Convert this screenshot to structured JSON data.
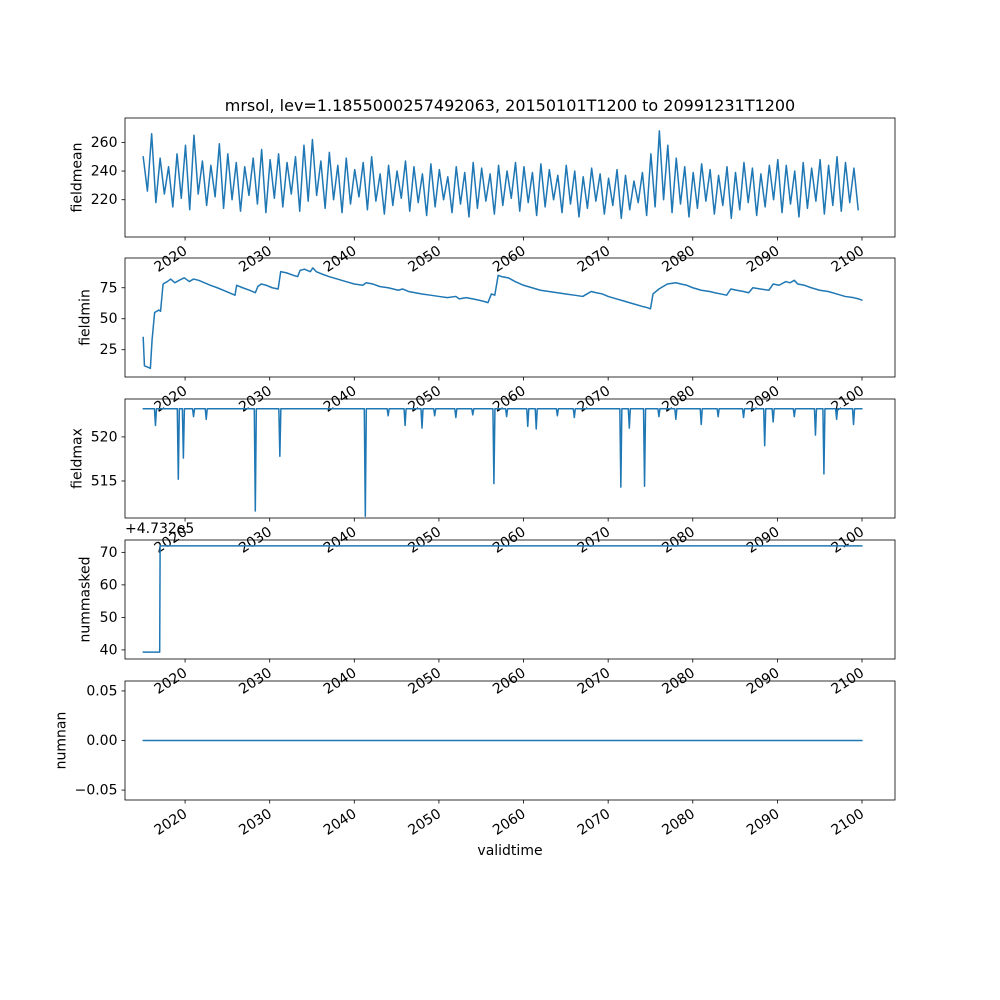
{
  "title": "mrsol, lev=1.1855000257492063, 20150101T1200 to 20991231T1200",
  "line_color": "#1f77b4",
  "x_axis": {
    "label": "validtime",
    "lim": [
      2012.9,
      2103.9
    ],
    "ticks": [
      2020,
      2030,
      2040,
      2050,
      2060,
      2070,
      2080,
      2090,
      2100
    ]
  },
  "chart_data": [
    {
      "type": "line",
      "ylabel": "fieldmean",
      "ylim": [
        194,
        277
      ],
      "yticks": [
        220,
        240,
        260
      ],
      "ytick_labels": [
        "220",
        "240",
        "260"
      ],
      "series": {
        "x0": 2015.05,
        "dx": 0.5,
        "values": [
          250,
          226,
          266,
          218,
          249,
          224,
          243,
          215,
          252,
          221,
          258,
          213,
          265,
          224,
          247,
          216,
          244,
          222,
          259,
          214,
          252,
          220,
          246,
          212,
          243,
          223,
          249,
          217,
          255,
          211,
          248,
          221,
          252,
          215,
          246,
          224,
          250,
          212,
          258,
          219,
          262,
          223,
          247,
          214,
          253,
          220,
          244,
          211,
          249,
          217,
          241,
          222,
          246,
          213,
          250,
          219,
          238,
          210,
          244,
          216,
          240,
          221,
          247,
          212,
          243,
          218,
          238,
          209,
          245,
          215,
          241,
          220,
          236,
          211,
          243,
          217,
          239,
          208,
          246,
          214,
          242,
          219,
          238,
          210,
          244,
          216,
          240,
          221,
          246,
          212,
          243,
          218,
          239,
          209,
          245,
          215,
          241,
          220,
          237,
          211,
          244,
          217,
          240,
          208,
          236,
          214,
          242,
          219,
          238,
          210,
          235,
          216,
          241,
          207,
          237,
          213,
          233,
          218,
          239,
          209,
          252,
          215,
          268,
          220,
          258,
          211,
          249,
          217,
          243,
          208,
          239,
          214,
          245,
          219,
          241,
          210,
          237,
          216,
          243,
          207,
          239,
          213,
          246,
          218,
          242,
          209,
          238,
          215,
          244,
          220,
          248,
          211,
          244,
          217,
          240,
          208,
          246,
          214,
          242,
          219,
          248,
          210,
          244,
          216,
          250,
          212,
          246,
          218,
          242,
          213
        ]
      }
    },
    {
      "type": "line",
      "ylabel": "fieldmin",
      "ylim": [
        3,
        99
      ],
      "yticks": [
        25,
        50,
        75
      ],
      "ytick_labels": [
        "25",
        "50",
        "75"
      ],
      "series": {
        "x": [
          2015.05,
          2015.2,
          2015.9,
          2016.1,
          2016.4,
          2016.9,
          2017.1,
          2017.4,
          2017.9,
          2018.3,
          2018.8,
          2019.3,
          2019.9,
          2020.5,
          2021.0,
          2021.6,
          2022.3,
          2023.0,
          2023.8,
          2024.5,
          2025.2,
          2025.9,
          2026.1,
          2026.8,
          2027.6,
          2028.3,
          2028.6,
          2029.0,
          2029.6,
          2030.3,
          2031.0,
          2031.3,
          2032.0,
          2032.8,
          2033.3,
          2033.6,
          2034.1,
          2034.8,
          2035.1,
          2035.5,
          2036.2,
          2037.0,
          2038.0,
          2039.0,
          2040.0,
          2041.0,
          2041.4,
          2042.2,
          2043.0,
          2044.0,
          2044.6,
          2045.2,
          2045.7,
          2046.4,
          2047.2,
          2048.0,
          2049.0,
          2050.0,
          2051.0,
          2052.0,
          2052.4,
          2053.2,
          2054.0,
          2054.7,
          2055.3,
          2055.8,
          2056.2,
          2056.6,
          2057.0,
          2057.4,
          2058.2,
          2059.0,
          2060.0,
          2061.0,
          2062.0,
          2063.0,
          2064.0,
          2065.0,
          2066.0,
          2067.0,
          2067.5,
          2068.0,
          2068.6,
          2069.3,
          2070.0,
          2071.0,
          2072.0,
          2073.0,
          2074.0,
          2074.6,
          2075.0,
          2075.3,
          2076.0,
          2077.0,
          2078.0,
          2078.6,
          2079.3,
          2080.0,
          2081.0,
          2082.0,
          2082.6,
          2083.3,
          2084.0,
          2084.5,
          2085.2,
          2086.0,
          2086.6,
          2087.1,
          2088.0,
          2089.0,
          2089.5,
          2090.2,
          2091.0,
          2091.5,
          2092.0,
          2092.4,
          2093.2,
          2094.0,
          2095.0,
          2096.0,
          2097.0,
          2098.0,
          2099.0,
          2099.6,
          2100.0
        ],
        "y": [
          35,
          12,
          10,
          33,
          55,
          57,
          56,
          78,
          80,
          82,
          79,
          81,
          83,
          80,
          82,
          81,
          79,
          77,
          75,
          73,
          71,
          69,
          77,
          75,
          73,
          71,
          76,
          78,
          77,
          75,
          74,
          88,
          87,
          85,
          84,
          89,
          90,
          88,
          91,
          88,
          86,
          84,
          82,
          80,
          78,
          77,
          79,
          78,
          76,
          75,
          74,
          73,
          74,
          72,
          71,
          70,
          69,
          68,
          67,
          68,
          66,
          67,
          66,
          65,
          64,
          63,
          70,
          69,
          85,
          84,
          83,
          80,
          77,
          75,
          73,
          72,
          71,
          70,
          69,
          68,
          70,
          72,
          71,
          70,
          68,
          66,
          64,
          62,
          60,
          59,
          58,
          70,
          74,
          78,
          79,
          78,
          77,
          75,
          73,
          72,
          71,
          70,
          69,
          74,
          73,
          72,
          71,
          75,
          74,
          73,
          78,
          77,
          80,
          79,
          81,
          78,
          77,
          75,
          73,
          72,
          70,
          68,
          67,
          66,
          65
        ]
      }
    },
    {
      "type": "spike-line",
      "ylabel": "fieldmax",
      "ylim": [
        510.8,
        524.3
      ],
      "yticks": [
        515,
        520
      ],
      "ytick_labels": [
        "515",
        "520"
      ],
      "series": {
        "baseline": 523.2,
        "x_range": [
          2015.05,
          2100.0
        ],
        "spike_halfwidth": 0.12,
        "spikes": [
          [
            2016.5,
            521.3
          ],
          [
            2019.2,
            515.2
          ],
          [
            2019.8,
            517.6
          ],
          [
            2021.0,
            522.3
          ],
          [
            2022.5,
            522.0
          ],
          [
            2028.3,
            511.6
          ],
          [
            2031.2,
            517.8
          ],
          [
            2041.3,
            511.0
          ],
          [
            2044.0,
            522.4
          ],
          [
            2046.0,
            521.3
          ],
          [
            2048.0,
            521.0
          ],
          [
            2049.5,
            522.4
          ],
          [
            2052.0,
            522.2
          ],
          [
            2054.0,
            522.5
          ],
          [
            2056.5,
            514.7
          ],
          [
            2058.0,
            522.3
          ],
          [
            2060.5,
            521.2
          ],
          [
            2061.5,
            520.9
          ],
          [
            2064.0,
            522.4
          ],
          [
            2066.0,
            522.2
          ],
          [
            2071.5,
            514.3
          ],
          [
            2072.5,
            521.0
          ],
          [
            2074.3,
            514.4
          ],
          [
            2076.0,
            522.3
          ],
          [
            2078.0,
            522.0
          ],
          [
            2081.0,
            521.4
          ],
          [
            2083.0,
            522.3
          ],
          [
            2086.0,
            522.2
          ],
          [
            2088.5,
            519.0
          ],
          [
            2089.5,
            521.7
          ],
          [
            2092.0,
            522.3
          ],
          [
            2094.5,
            520.2
          ],
          [
            2095.5,
            515.8
          ],
          [
            2097.0,
            522.0
          ],
          [
            2099.0,
            521.4
          ]
        ]
      }
    },
    {
      "type": "line",
      "ylabel": "nummasked",
      "offset_text": "+4.732e5",
      "ylim": [
        37.2,
        73.8
      ],
      "yticks": [
        40,
        50,
        60,
        70
      ],
      "ytick_labels": [
        "40",
        "50",
        "60",
        "70"
      ],
      "series": {
        "x": [
          2015.05,
          2017.0,
          2017.05,
          2100.0
        ],
        "y": [
          39.3,
          39.3,
          72.0,
          72.0
        ]
      }
    },
    {
      "type": "line",
      "ylabel": "numnan",
      "ylim": [
        -0.06,
        0.06
      ],
      "yticks": [
        -0.05,
        0.0,
        0.05
      ],
      "ytick_labels": [
        "−0.05",
        "0.00",
        "0.05"
      ],
      "series": {
        "x": [
          2015.05,
          2100.0
        ],
        "y": [
          0.0,
          0.0
        ]
      }
    }
  ]
}
